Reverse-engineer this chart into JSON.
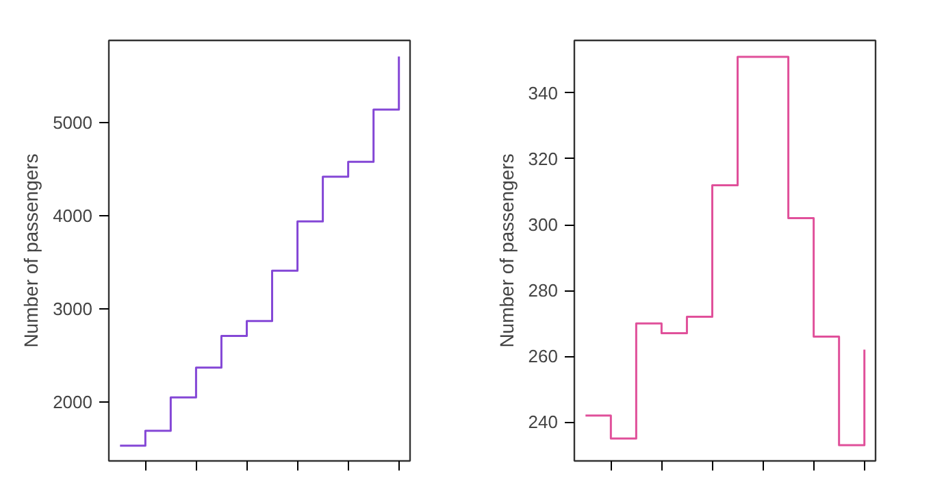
{
  "chart_data": [
    {
      "type": "step",
      "ylabel": "Number of passengers",
      "categories": [
        null,
        null,
        null,
        null,
        null,
        null,
        null,
        null,
        null,
        null,
        null,
        null
      ],
      "series": [
        {
          "color": "#8447d6",
          "values": [
            1530,
            1690,
            2050,
            2370,
            2710,
            2870,
            3410,
            3940,
            4420,
            4580,
            5140,
            5710
          ]
        }
      ],
      "ylim": [
        1367,
        5883
      ],
      "yticks": [
        2000,
        3000,
        4000,
        5000
      ],
      "grid": false
    },
    {
      "type": "step",
      "ylabel": "Number of passengers",
      "categories": [
        null,
        null,
        null,
        null,
        null,
        null,
        null,
        null,
        null,
        null,
        null,
        null
      ],
      "series": [
        {
          "color": "#e0509a",
          "values": [
            242,
            235,
            270,
            267,
            272,
            312,
            351,
            351,
            302,
            266,
            233,
            262
          ]
        }
      ],
      "ylim": [
        228.2,
        356
      ],
      "yticks": [
        240,
        260,
        280,
        300,
        320,
        340
      ],
      "grid": false
    }
  ]
}
